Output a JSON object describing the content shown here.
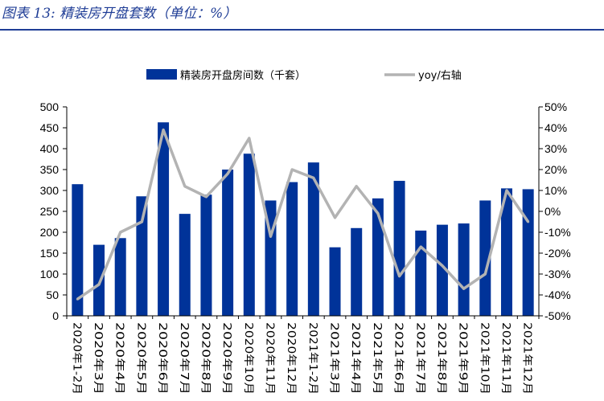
{
  "figure": {
    "title": "图表 13:  精装房开盘套数（单位：%）"
  },
  "chart_data": {
    "type": "bar",
    "title": "精装房开盘套数（单位：%）",
    "categories": [
      "2020年1-2月",
      "2020年3月",
      "2020年4月",
      "2020年5月",
      "2020年6月",
      "2020年7月",
      "2020年8月",
      "2020年9月",
      "2020年10月",
      "2020年11月",
      "2020年12月",
      "2021年1-2月",
      "2021年3月",
      "2021年4月",
      "2021年5月",
      "2021年6月",
      "2021年7月",
      "2021年8月",
      "2021年9月",
      "2021年10月",
      "2021年11月",
      "2021年12月"
    ],
    "series": [
      {
        "name": "精装房开盘房间数（千套）",
        "type": "bar",
        "axis": "left",
        "color": "#003399",
        "values": [
          315,
          170,
          186,
          286,
          463,
          244,
          290,
          350,
          388,
          276,
          320,
          367,
          164,
          210,
          281,
          323,
          204,
          218,
          221,
          276,
          305,
          303
        ]
      },
      {
        "name": "yoy/右轴",
        "type": "line",
        "axis": "right",
        "color": "#b3b3b3",
        "values": [
          -42,
          -35,
          -10,
          -5,
          39,
          12,
          7,
          18,
          35,
          -12,
          20,
          16,
          -3,
          12,
          -1,
          -31,
          -17,
          -26,
          -37,
          -30,
          10,
          -5
        ]
      }
    ],
    "left_axis": {
      "min": 0,
      "max": 500,
      "step": 50,
      "ticks": [
        "0",
        "50",
        "100",
        "150",
        "200",
        "250",
        "300",
        "350",
        "400",
        "450",
        "500"
      ]
    },
    "right_axis": {
      "min": -50,
      "max": 50,
      "step": 10,
      "ticks": [
        "-50%",
        "-40%",
        "-30%",
        "-20%",
        "-10%",
        "0%",
        "10%",
        "20%",
        "30%",
        "40%",
        "50%"
      ]
    },
    "xlabel": "",
    "ylabel": "",
    "grid": false,
    "legend_position": "top"
  }
}
